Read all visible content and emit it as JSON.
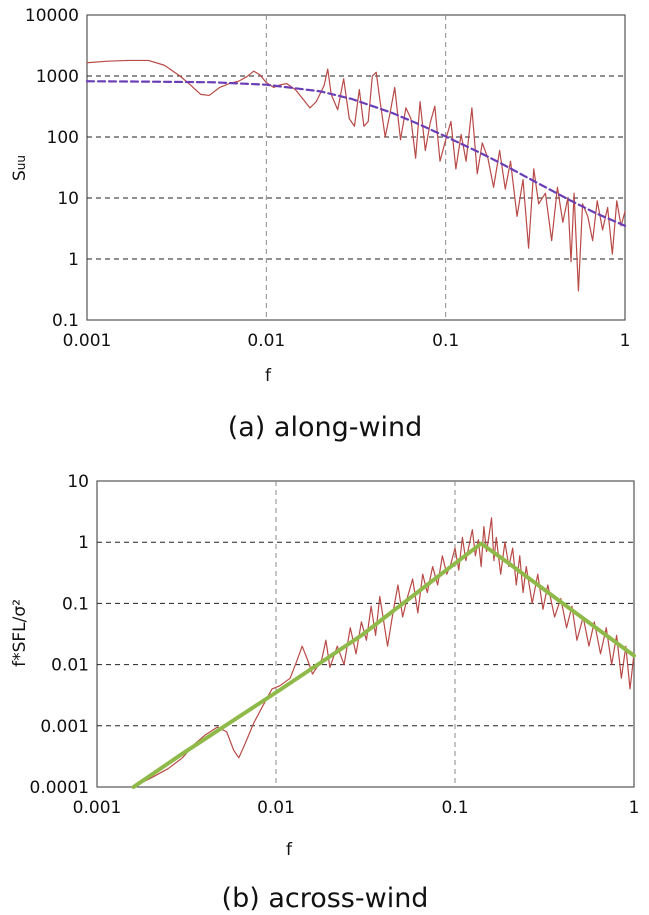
{
  "chart_data": [
    {
      "type": "line",
      "caption": "(a) along-wind",
      "xlabel": "f",
      "ylabel": "S",
      "ylabel_sub": "uu",
      "xscale": "log",
      "yscale": "log",
      "xlim": [
        0.001,
        1
      ],
      "ylim": [
        0.1,
        10000
      ],
      "x_ticks": [
        0.001,
        0.01,
        0.1,
        1
      ],
      "x_tick_labels": [
        "0.001",
        "0.01",
        "0.1",
        "1"
      ],
      "y_ticks": [
        0.1,
        1,
        10,
        100,
        1000,
        10000
      ],
      "y_tick_labels": [
        "0.1",
        "1",
        "10",
        "100",
        "1000",
        "10000"
      ],
      "grid": "dashed at major ticks",
      "series": [
        {
          "role": "measured spectrum",
          "style": "thin solid",
          "color": "#b84a47",
          "points": [
            [
              0.001,
              1650
            ],
            [
              0.0013,
              1750
            ],
            [
              0.0017,
              1800
            ],
            [
              0.0022,
              1800
            ],
            [
              0.0027,
              1500
            ],
            [
              0.0033,
              1000
            ],
            [
              0.0038,
              700
            ],
            [
              0.0043,
              500
            ],
            [
              0.0048,
              480
            ],
            [
              0.0055,
              650
            ],
            [
              0.0062,
              750
            ],
            [
              0.007,
              820
            ],
            [
              0.0078,
              980
            ],
            [
              0.0085,
              1200
            ],
            [
              0.0092,
              1050
            ],
            [
              0.01,
              780
            ],
            [
              0.011,
              650
            ],
            [
              0.012,
              720
            ],
            [
              0.013,
              750
            ],
            [
              0.0145,
              600
            ],
            [
              0.016,
              420
            ],
            [
              0.0175,
              300
            ],
            [
              0.019,
              380
            ],
            [
              0.021,
              700
            ],
            [
              0.022,
              1300
            ],
            [
              0.023,
              500
            ],
            [
              0.025,
              280
            ],
            [
              0.027,
              900
            ],
            [
              0.029,
              200
            ],
            [
              0.031,
              150
            ],
            [
              0.033,
              600
            ],
            [
              0.035,
              150
            ],
            [
              0.037,
              180
            ],
            [
              0.039,
              1000
            ],
            [
              0.041,
              1150
            ],
            [
              0.043,
              400
            ],
            [
              0.046,
              100
            ],
            [
              0.049,
              250
            ],
            [
              0.052,
              650
            ],
            [
              0.056,
              90
            ],
            [
              0.06,
              300
            ],
            [
              0.064,
              200
            ],
            [
              0.068,
              45
            ],
            [
              0.072,
              380
            ],
            [
              0.077,
              60
            ],
            [
              0.082,
              170
            ],
            [
              0.087,
              320
            ],
            [
              0.093,
              40
            ],
            [
              0.1,
              90
            ],
            [
              0.107,
              180
            ],
            [
              0.114,
              30
            ],
            [
              0.122,
              110
            ],
            [
              0.13,
              40
            ],
            [
              0.14,
              300
            ],
            [
              0.15,
              25
            ],
            [
              0.16,
              80
            ],
            [
              0.172,
              45
            ],
            [
              0.185,
              15
            ],
            [
              0.2,
              60
            ],
            [
              0.215,
              14
            ],
            [
              0.23,
              40
            ],
            [
              0.25,
              5
            ],
            [
              0.27,
              20
            ],
            [
              0.29,
              1.5
            ],
            [
              0.31,
              30
            ],
            [
              0.33,
              8
            ],
            [
              0.36,
              12
            ],
            [
              0.39,
              2
            ],
            [
              0.42,
              15
            ],
            [
              0.45,
              4
            ],
            [
              0.48,
              10
            ],
            [
              0.5,
              0.9
            ],
            [
              0.52,
              12
            ],
            [
              0.55,
              0.3
            ],
            [
              0.58,
              8
            ],
            [
              0.62,
              5
            ],
            [
              0.66,
              2
            ],
            [
              0.7,
              9
            ],
            [
              0.75,
              3
            ],
            [
              0.8,
              7
            ],
            [
              0.85,
              1.2
            ],
            [
              0.9,
              9
            ],
            [
              0.95,
              3.5
            ],
            [
              1,
              6
            ]
          ]
        },
        {
          "role": "fitted model spectrum",
          "style": "dashed",
          "color": "#6a3fb5",
          "points": [
            [
              0.001,
              820
            ],
            [
              0.002,
              810
            ],
            [
              0.005,
              790
            ],
            [
              0.01,
              720
            ],
            [
              0.02,
              560
            ],
            [
              0.03,
              420
            ],
            [
              0.05,
              250
            ],
            [
              0.07,
              165
            ],
            [
              0.1,
              102
            ],
            [
              0.15,
              58
            ],
            [
              0.2,
              38
            ],
            [
              0.3,
              20
            ],
            [
              0.5,
              9
            ],
            [
              0.7,
              5.5
            ],
            [
              1,
              3.5
            ]
          ]
        }
      ]
    },
    {
      "type": "line",
      "caption": "(b) across-wind",
      "xlabel": "f",
      "ylabel": "f*SFL/σ²",
      "xscale": "log",
      "yscale": "log",
      "xlim": [
        0.001,
        1
      ],
      "ylim": [
        0.0001,
        10
      ],
      "x_ticks": [
        0.001,
        0.01,
        0.1,
        1
      ],
      "x_tick_labels": [
        "0.001",
        "0.01",
        "0.1",
        "1"
      ],
      "y_ticks": [
        0.0001,
        0.001,
        0.01,
        0.1,
        1,
        10
      ],
      "y_tick_labels": [
        "0.0001",
        "0.001",
        "0.01",
        "0.1",
        "1",
        "10"
      ],
      "grid": "dashed at major ticks",
      "series": [
        {
          "role": "measured spectrum",
          "style": "thin solid",
          "color": "#b84a47",
          "points": [
            [
              0.0018,
              0.00012
            ],
            [
              0.002,
              0.00014
            ],
            [
              0.0025,
              0.0002
            ],
            [
              0.003,
              0.0003
            ],
            [
              0.0035,
              0.0005
            ],
            [
              0.004,
              0.0007
            ],
            [
              0.0047,
              0.00095
            ],
            [
              0.0053,
              0.0008
            ],
            [
              0.0058,
              0.0004
            ],
            [
              0.0062,
              0.0003
            ],
            [
              0.0067,
              0.0005
            ],
            [
              0.0075,
              0.0011
            ],
            [
              0.0085,
              0.0022
            ],
            [
              0.0095,
              0.004
            ],
            [
              0.0105,
              0.0045
            ],
            [
              0.012,
              0.006
            ],
            [
              0.013,
              0.011
            ],
            [
              0.014,
              0.02
            ],
            [
              0.015,
              0.012
            ],
            [
              0.016,
              0.007
            ],
            [
              0.018,
              0.012
            ],
            [
              0.019,
              0.025
            ],
            [
              0.02,
              0.009
            ],
            [
              0.022,
              0.02
            ],
            [
              0.024,
              0.01
            ],
            [
              0.026,
              0.04
            ],
            [
              0.028,
              0.015
            ],
            [
              0.03,
              0.05
            ],
            [
              0.032,
              0.025
            ],
            [
              0.034,
              0.09
            ],
            [
              0.036,
              0.03
            ],
            [
              0.038,
              0.13
            ],
            [
              0.04,
              0.05
            ],
            [
              0.042,
              0.02
            ],
            [
              0.045,
              0.07
            ],
            [
              0.048,
              0.2
            ],
            [
              0.051,
              0.06
            ],
            [
              0.054,
              0.12
            ],
            [
              0.058,
              0.25
            ],
            [
              0.062,
              0.07
            ],
            [
              0.066,
              0.3
            ],
            [
              0.07,
              0.15
            ],
            [
              0.075,
              0.4
            ],
            [
              0.08,
              0.2
            ],
            [
              0.085,
              0.6
            ],
            [
              0.09,
              0.3
            ],
            [
              0.095,
              0.45
            ],
            [
              0.1,
              0.8
            ],
            [
              0.105,
              0.35
            ],
            [
              0.11,
              1.2
            ],
            [
              0.115,
              0.5
            ],
            [
              0.12,
              0.9
            ],
            [
              0.125,
              1.6
            ],
            [
              0.13,
              0.6
            ],
            [
              0.135,
              1.1
            ],
            [
              0.14,
              0.4
            ],
            [
              0.145,
              1.8
            ],
            [
              0.15,
              0.7
            ],
            [
              0.155,
              1.3
            ],
            [
              0.16,
              2.5
            ],
            [
              0.165,
              0.5
            ],
            [
              0.17,
              1.2
            ],
            [
              0.18,
              0.3
            ],
            [
              0.19,
              1.0
            ],
            [
              0.2,
              0.4
            ],
            [
              0.21,
              0.8
            ],
            [
              0.22,
              0.2
            ],
            [
              0.23,
              0.6
            ],
            [
              0.24,
              0.15
            ],
            [
              0.25,
              0.4
            ],
            [
              0.27,
              0.1
            ],
            [
              0.29,
              0.3
            ],
            [
              0.31,
              0.08
            ],
            [
              0.33,
              0.2
            ],
            [
              0.36,
              0.06
            ],
            [
              0.39,
              0.12
            ],
            [
              0.42,
              0.04
            ],
            [
              0.45,
              0.09
            ],
            [
              0.48,
              0.025
            ],
            [
              0.52,
              0.06
            ],
            [
              0.56,
              0.02
            ],
            [
              0.6,
              0.05
            ],
            [
              0.65,
              0.015
            ],
            [
              0.7,
              0.04
            ],
            [
              0.75,
              0.01
            ],
            [
              0.8,
              0.03
            ],
            [
              0.85,
              0.006
            ],
            [
              0.9,
              0.02
            ],
            [
              0.95,
              0.004
            ],
            [
              1,
              0.015
            ]
          ]
        },
        {
          "role": "fitted model spectrum",
          "style": "thick solid",
          "color": "#8fba4a",
          "points": [
            [
              0.0016,
              0.0001
            ],
            [
              0.003,
              0.00035
            ],
            [
              0.01,
              0.0035
            ],
            [
              0.03,
              0.03
            ],
            [
              0.1,
              0.45
            ],
            [
              0.14,
              0.95
            ],
            [
              0.2,
              0.45
            ],
            [
              0.4,
              0.1
            ],
            [
              1,
              0.014
            ]
          ]
        }
      ]
    }
  ]
}
